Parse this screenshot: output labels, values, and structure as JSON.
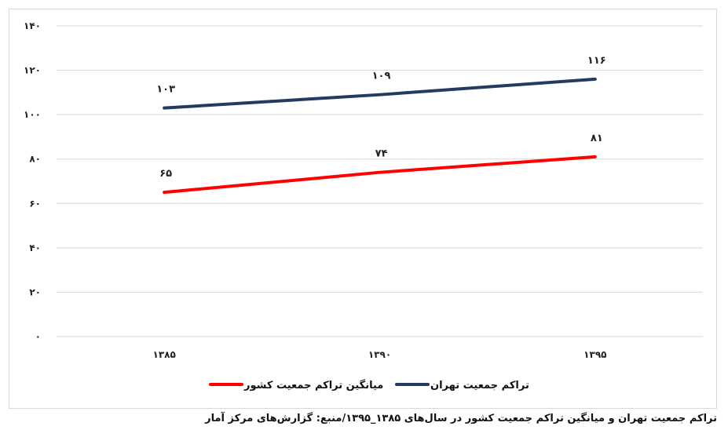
{
  "caption": "تراکم جمعیت تهران و میانگین تراکم جمعیت کشور در سال‌های ۱۳۸۵_۱۳۹۵/منبع: گزارش‌های مرکز آمار",
  "chart_data": {
    "type": "line",
    "categories": [
      "۱۳۸۵",
      "۱۳۹۰",
      "۱۳۹۵"
    ],
    "series": [
      {
        "name": "تراکم جمعیت تهران",
        "color": "#243A5E",
        "values": [
          103,
          109,
          116
        ],
        "data_labels": [
          "۱۰۳",
          "۱۰۹",
          "۱۱۶"
        ]
      },
      {
        "name": "میانگین تراکم جمعیت کشور",
        "color": "#FF0000",
        "values": [
          65,
          74,
          81
        ],
        "data_labels": [
          "۶۵",
          "۷۴",
          "۸۱"
        ]
      }
    ],
    "ylim": [
      0,
      140
    ],
    "yticks": [
      {
        "value": 0,
        "label": "۰"
      },
      {
        "value": 20,
        "label": "۲۰"
      },
      {
        "value": 40,
        "label": "۴۰"
      },
      {
        "value": 60,
        "label": "۶۰"
      },
      {
        "value": 80,
        "label": "۸۰"
      },
      {
        "value": 100,
        "label": "۱۰۰"
      },
      {
        "value": 120,
        "label": "۱۲۰"
      },
      {
        "value": 140,
        "label": "۱۴۰"
      }
    ],
    "grid": true,
    "legend_position": "bottom",
    "title": "",
    "xlabel": "",
    "ylabel": ""
  }
}
